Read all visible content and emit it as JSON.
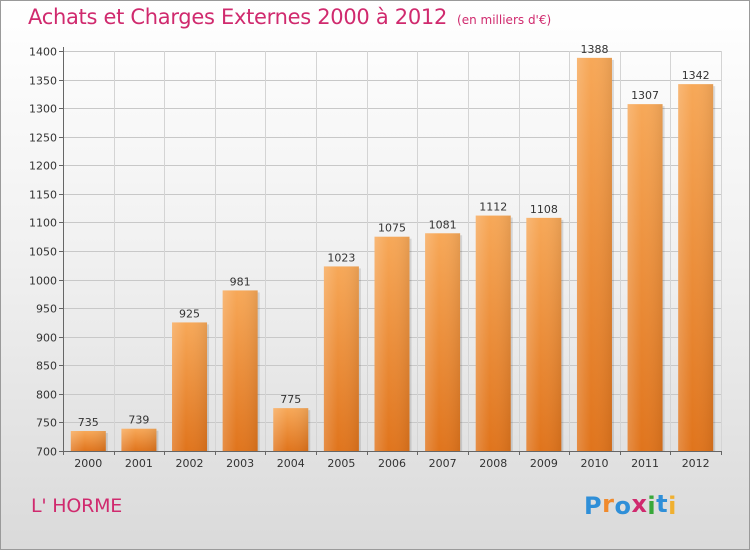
{
  "chart_data": {
    "type": "bar",
    "title": "Achats et Charges Externes 2000 à 2012",
    "subtitle": "(en milliers d'€)",
    "categories": [
      "2000",
      "2001",
      "2002",
      "2003",
      "2004",
      "2005",
      "2006",
      "2007",
      "2008",
      "2009",
      "2010",
      "2011",
      "2012"
    ],
    "values": [
      735,
      739,
      925,
      981,
      775,
      1023,
      1075,
      1081,
      1112,
      1108,
      1388,
      1307,
      1342
    ],
    "ylim": [
      700,
      1400
    ],
    "yticks": [
      700,
      750,
      800,
      850,
      900,
      950,
      1000,
      1050,
      1100,
      1150,
      1200,
      1250,
      1300,
      1350,
      1400
    ],
    "grid": true,
    "bar_color": "#f08a2c"
  },
  "location": "L' HORME",
  "logo": {
    "text": "Proxiti",
    "colors": [
      "#2f8fd8",
      "#f08a2c",
      "#2f8fd8",
      "#d02a6e",
      "#38a83a",
      "#2f8fd8",
      "#f0b030"
    ]
  }
}
